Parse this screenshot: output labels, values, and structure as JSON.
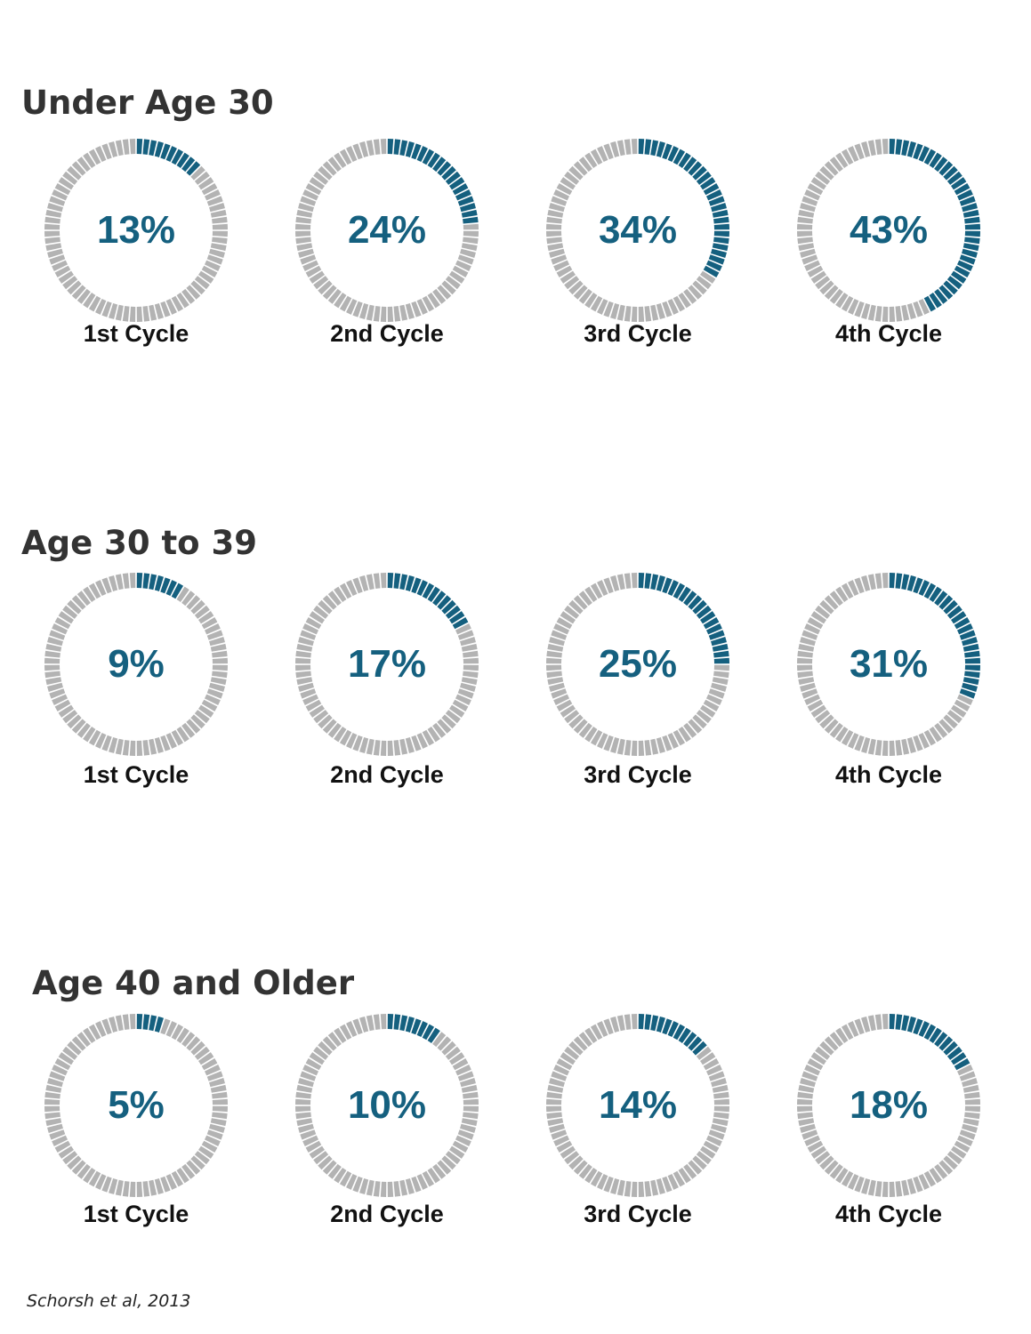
{
  "chart_data": [
    {
      "type": "donut",
      "title": "Under Age 30",
      "categories": [
        "1st Cycle",
        "2nd Cycle",
        "3rd Cycle",
        "4th Cycle"
      ],
      "values": [
        13,
        24,
        34,
        43
      ],
      "labels": [
        "13%",
        "24%",
        "34%",
        "43%"
      ],
      "ylim": [
        0,
        100
      ]
    },
    {
      "type": "donut",
      "title": "Age 30 to 39",
      "categories": [
        "1st Cycle",
        "2nd Cycle",
        "3rd Cycle",
        "4th Cycle"
      ],
      "values": [
        9,
        17,
        25,
        31
      ],
      "labels": [
        "9%",
        "17%",
        "25%",
        "31%"
      ],
      "ylim": [
        0,
        100
      ]
    },
    {
      "type": "donut",
      "title": "Age 40 and Older",
      "categories": [
        "1st Cycle",
        "2nd Cycle",
        "3rd Cycle",
        "4th Cycle"
      ],
      "values": [
        5,
        10,
        14,
        18
      ],
      "labels": [
        "5%",
        "10%",
        "14%",
        "18%"
      ],
      "ylim": [
        0,
        100
      ]
    }
  ],
  "colors": {
    "filled": "#15607f",
    "empty": "#b3b3b3",
    "title": "#333333"
  },
  "source": "Schorsh et al, 2013"
}
